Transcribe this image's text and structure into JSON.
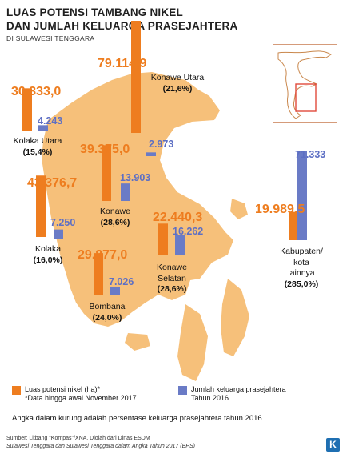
{
  "title_line1": "LUAS POTENSI TAMBANG NIKEL",
  "title_line2": "DAN JUMLAH KELUARGA PRASEJAHTERA",
  "subtitle": "DI SULAWESI TENGGARA",
  "colors": {
    "nickel": "#ee7d1f",
    "families": "#6a7bc6",
    "land": "#f6c07a",
    "sea": "#ffffff"
  },
  "chart_data": {
    "type": "bar",
    "series": [
      {
        "name": "Luas potensi nikel (ha)*",
        "values": [
          30333.0,
          79114.9,
          39375.0,
          43376.7,
          29877.0,
          22440.3,
          19989.5
        ]
      },
      {
        "name": "Jumlah keluarga prasejahtera Tahun 2016",
        "values": [
          4243,
          2973,
          13903,
          7250,
          7026,
          16262,
          71333
        ]
      }
    ],
    "categories": [
      "Kolaka Utara",
      "Konawe Utara",
      "Konawe",
      "Kolaka",
      "Bombana",
      "Konawe Selatan",
      "Kabupaten/ kota lainnya"
    ],
    "percentages": [
      "(15,4%)",
      "(21,6%)",
      "(28,6%)",
      "(16,0%)",
      "(24,0%)",
      "(28,6%)",
      "(285,0%)"
    ]
  },
  "regions": [
    {
      "id": "kolaka-utara",
      "nickel": "30.333,0",
      "families": "4.243",
      "name_lines": [
        "Kolaka Utara"
      ],
      "pct": "(15,4%)"
    },
    {
      "id": "konawe-utara",
      "nickel": "79.114,9",
      "families": "2.973",
      "name_lines": [
        "Konawe Utara"
      ],
      "pct": "(21,6%)"
    },
    {
      "id": "konawe",
      "nickel": "39.375,0",
      "families": "13.903",
      "name_lines": [
        "Konawe"
      ],
      "pct": "(28,6%)"
    },
    {
      "id": "kolaka",
      "nickel": "43.376,7",
      "families": "7.250",
      "name_lines": [
        "Kolaka"
      ],
      "pct": "(16,0%)"
    },
    {
      "id": "bombana",
      "nickel": "29.877,0",
      "families": "7.026",
      "name_lines": [
        "Bombana"
      ],
      "pct": "(24,0%)"
    },
    {
      "id": "konawe-selatan",
      "nickel": "22.440,3",
      "families": "16.262",
      "name_lines": [
        "Konawe",
        "Selatan"
      ],
      "pct": "(28,6%)"
    },
    {
      "id": "lainnya",
      "nickel": "19.989,5",
      "families": "71.333",
      "name_lines": [
        "Kabupaten/",
        "kota",
        "lainnya"
      ],
      "pct": "(285,0%)"
    }
  ],
  "legend": {
    "nickel_label": "Luas potensi nikel (ha)*",
    "nickel_note": "*Data hingga awal November 2017",
    "families_line1": "Jumlah keluarga prasejahtera",
    "families_line2": "Tahun 2016"
  },
  "note": "Angka dalam kurung adalah persentase keluarga prasejahtera tahun 2016",
  "source_line1": "Sumber: Litbang \"Kompas\"/XNA, Diolah dari Dinas ESDM",
  "source_line2": "Sulawesi Tenggara dan Sulawesi Tenggara dalam Angka Tahun 2017 (BPS)",
  "logo": "K"
}
